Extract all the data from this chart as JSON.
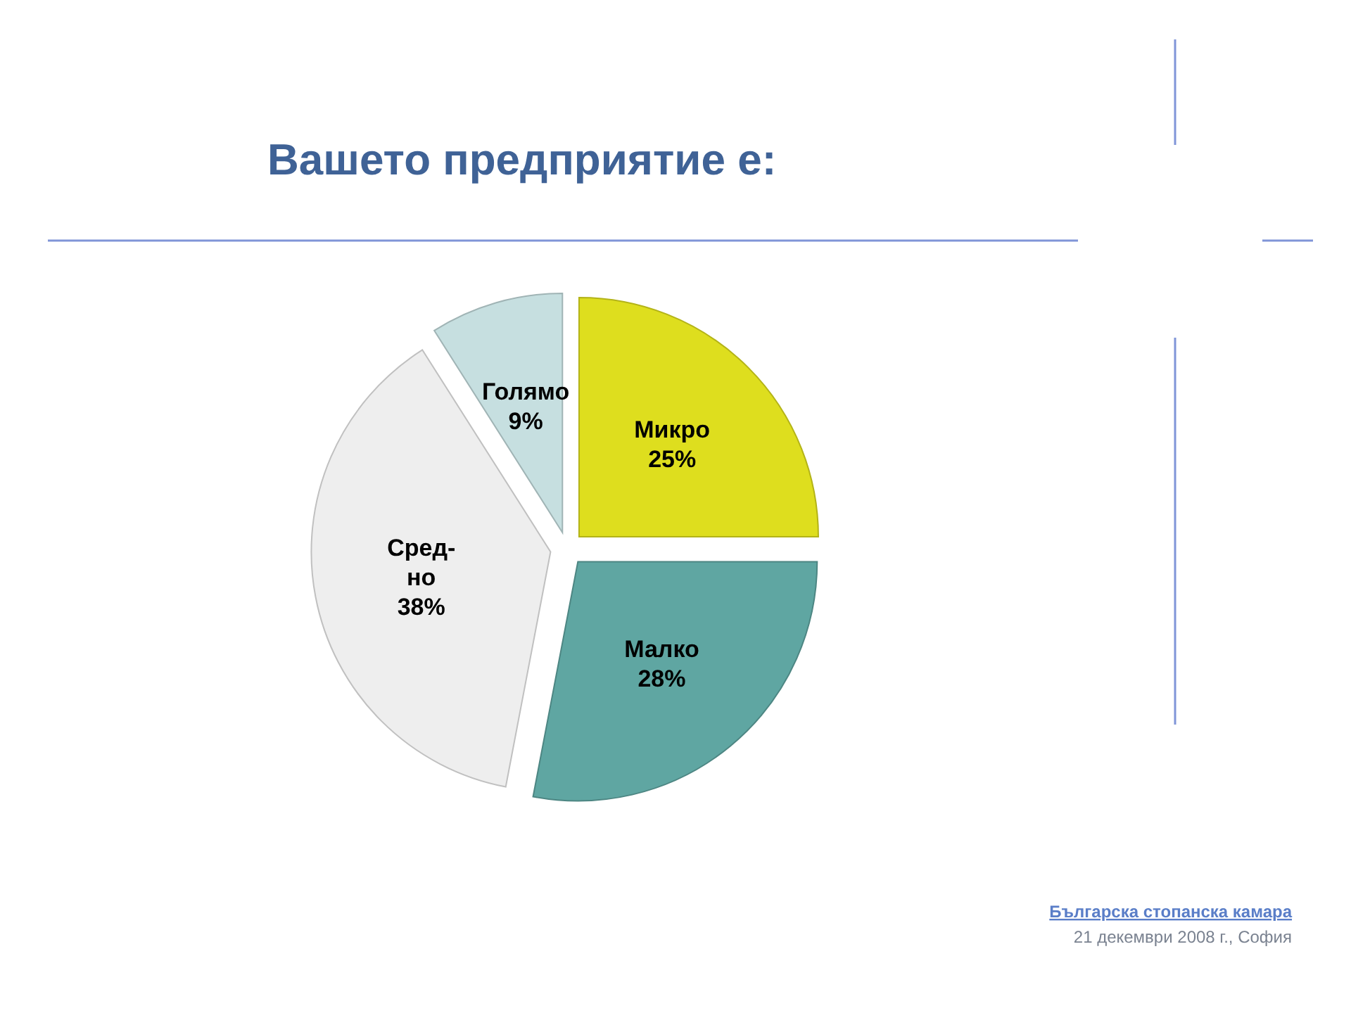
{
  "chart_data": {
    "type": "pie",
    "title": "Вашето предприятие е:",
    "categories": [
      "Микро",
      "Малко",
      "Сред-\nно",
      "Голямо"
    ],
    "values": [
      25,
      28,
      38,
      9
    ],
    "colors": [
      "#dede1e",
      "#5fa6a2",
      "#eeeeee",
      "#c6dfe0"
    ],
    "value_labels": [
      "25%",
      "28%",
      "38%",
      "9%"
    ],
    "annotations": [
      "Българска стопанска камара",
      "21 декември 2008 г., София"
    ]
  }
}
